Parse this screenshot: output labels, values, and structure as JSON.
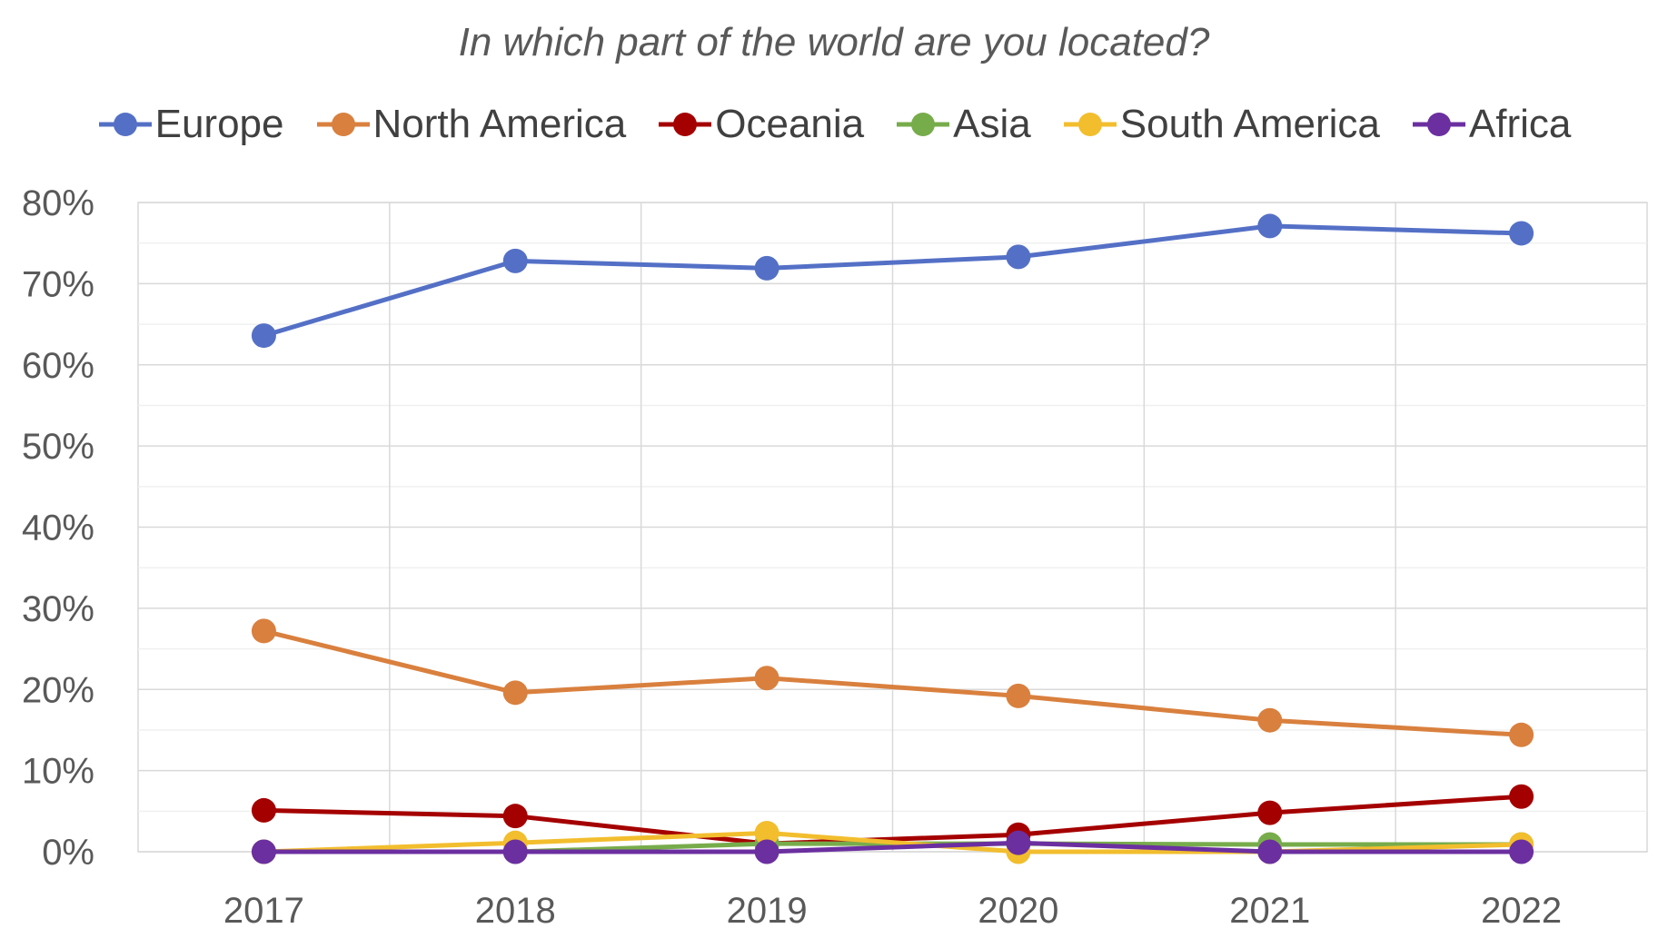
{
  "chart_data": {
    "type": "line",
    "title": "In which part of the world are you located?",
    "xlabel": "",
    "ylabel": "",
    "categories": [
      "2017",
      "2018",
      "2019",
      "2020",
      "2021",
      "2022"
    ],
    "ylim": [
      0,
      0.8
    ],
    "yticks": [
      0,
      0.1,
      0.2,
      0.3,
      0.4,
      0.5,
      0.6,
      0.7,
      0.8
    ],
    "ytick_labels": [
      "0%",
      "10%",
      "20%",
      "30%",
      "40%",
      "50%",
      "60%",
      "70%",
      "80%"
    ],
    "grid": true,
    "legend_position": "top",
    "series": [
      {
        "name": "Europe",
        "color": "#5470C6",
        "values": [
          0.636,
          0.728,
          0.719,
          0.733,
          0.771,
          0.762
        ]
      },
      {
        "name": "North America",
        "color": "#D9803E",
        "values": [
          0.272,
          0.196,
          0.214,
          0.192,
          0.162,
          0.144
        ]
      },
      {
        "name": "Oceania",
        "color": "#A50000",
        "values": [
          0.051,
          0.044,
          0.01,
          0.021,
          0.048,
          0.068
        ]
      },
      {
        "name": "Asia",
        "color": "#77AC4B",
        "values": [
          0.0,
          0.0,
          0.01,
          0.01,
          0.009,
          0.009
        ]
      },
      {
        "name": "South America",
        "color": "#F2BE2E",
        "values": [
          0.0,
          0.011,
          0.023,
          0.0,
          0.0,
          0.009
        ]
      },
      {
        "name": "Africa",
        "color": "#6B2FA0",
        "values": [
          0.0,
          0.0,
          0.0,
          0.011,
          0.0,
          0.0
        ]
      }
    ]
  }
}
